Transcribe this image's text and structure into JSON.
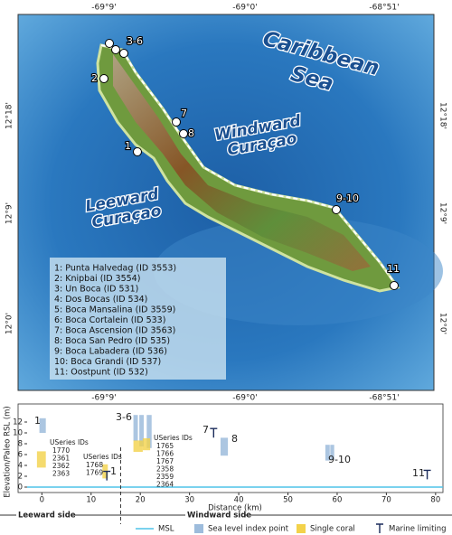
{
  "map": {
    "top_labels": [
      "-69°9'",
      "-69°0'",
      "-68°51'"
    ],
    "bottom_labels": [
      "-69°9'",
      "-69°0'",
      "-68°51'"
    ],
    "left_labels": [
      "12°18'",
      "12°9'",
      "12°0'"
    ],
    "right_labels": [
      "12°18'",
      "12°9'",
      "12°0'"
    ],
    "sea_labels": [
      "Caribbean",
      "Sea",
      "Windward",
      "Curaçao",
      "Leeward",
      "Curaçao"
    ],
    "point_labels": [
      "3-6",
      "2",
      "7",
      "8",
      "1",
      "9-10",
      "11"
    ],
    "site_list": [
      "1: Punta Halvedag (ID 3553)",
      "2: Knipbai (ID 3554)",
      "3: Un Boca (ID 531)",
      "4: Dos Bocas (ID 534)",
      "5: Boca Mansalina (ID 3559)",
      "6: Boca Cortalein (ID 533)",
      "7: Boca Ascension (ID 3563)",
      "8: Boca San Pedro (ID 535)",
      "9: Boca Labadera (ID 536)",
      "10: Boca Grandi (ID 537)",
      "11: Oostpunt (ID 532)"
    ]
  },
  "chart_data": {
    "type": "box",
    "x_label": "Distance (km)",
    "y_label": "Elevation/Paleo RSL (m)",
    "xlim": [
      -3,
      81.5
    ],
    "ylim": [
      -1,
      14
    ],
    "xticks": [
      0,
      10,
      20,
      30,
      40,
      50,
      60,
      70,
      80
    ],
    "yticks": [
      0,
      2,
      4,
      6,
      8,
      10,
      12
    ],
    "divider_x": 16,
    "sides": [
      "Leeward side",
      "Windward side"
    ],
    "site_labels": [
      "1",
      "3-6",
      "7",
      "8",
      "1",
      "9-10",
      "11"
    ],
    "useries_groups": [
      {
        "title": "USeries IDs",
        "ids": [
          "1770",
          "2361",
          "2362",
          "2363"
        ]
      },
      {
        "title": "USeries IDs",
        "ids": [
          "1768",
          "1769"
        ]
      },
      {
        "title": "USeries IDs",
        "ids": [
          "1765",
          "1766",
          "1767",
          "2358",
          "2359",
          "2364"
        ]
      }
    ],
    "series": [
      {
        "name": "MSL",
        "color": "#4fc3e8",
        "values": [
          0
        ]
      },
      {
        "name": "Sea level index point",
        "color": "#9dbcdc",
        "x0": [
          -0.5,
          18.6,
          19.8,
          21.3,
          36.3,
          57.6,
          58.6
        ],
        "x1": [
          0.8,
          19.5,
          20.7,
          22.3,
          37.8,
          58.5,
          59.4
        ],
        "y0": [
          10,
          8.5,
          7.5,
          7.2,
          5.8,
          4.9,
          5.0
        ],
        "y1": [
          12.7,
          13.3,
          13.3,
          13.3,
          9.1,
          7.8,
          7.8
        ]
      },
      {
        "name": "Single coral",
        "color": "#f3d24a",
        "x0": [
          -1,
          12.3,
          18.6,
          20.5
        ],
        "x1": [
          0.8,
          13.4,
          20.5,
          22
        ],
        "y0": [
          3.6,
          1.6,
          6.5,
          6.8
        ],
        "y1": [
          6.6,
          4.2,
          8.6,
          9
        ]
      },
      {
        "name": "Marine limiting",
        "color": "#1a2a5a",
        "x": [
          13.2,
          34.9,
          78.3
        ],
        "values": [
          2.9,
          10.8,
          3.1
        ]
      }
    ]
  }
}
